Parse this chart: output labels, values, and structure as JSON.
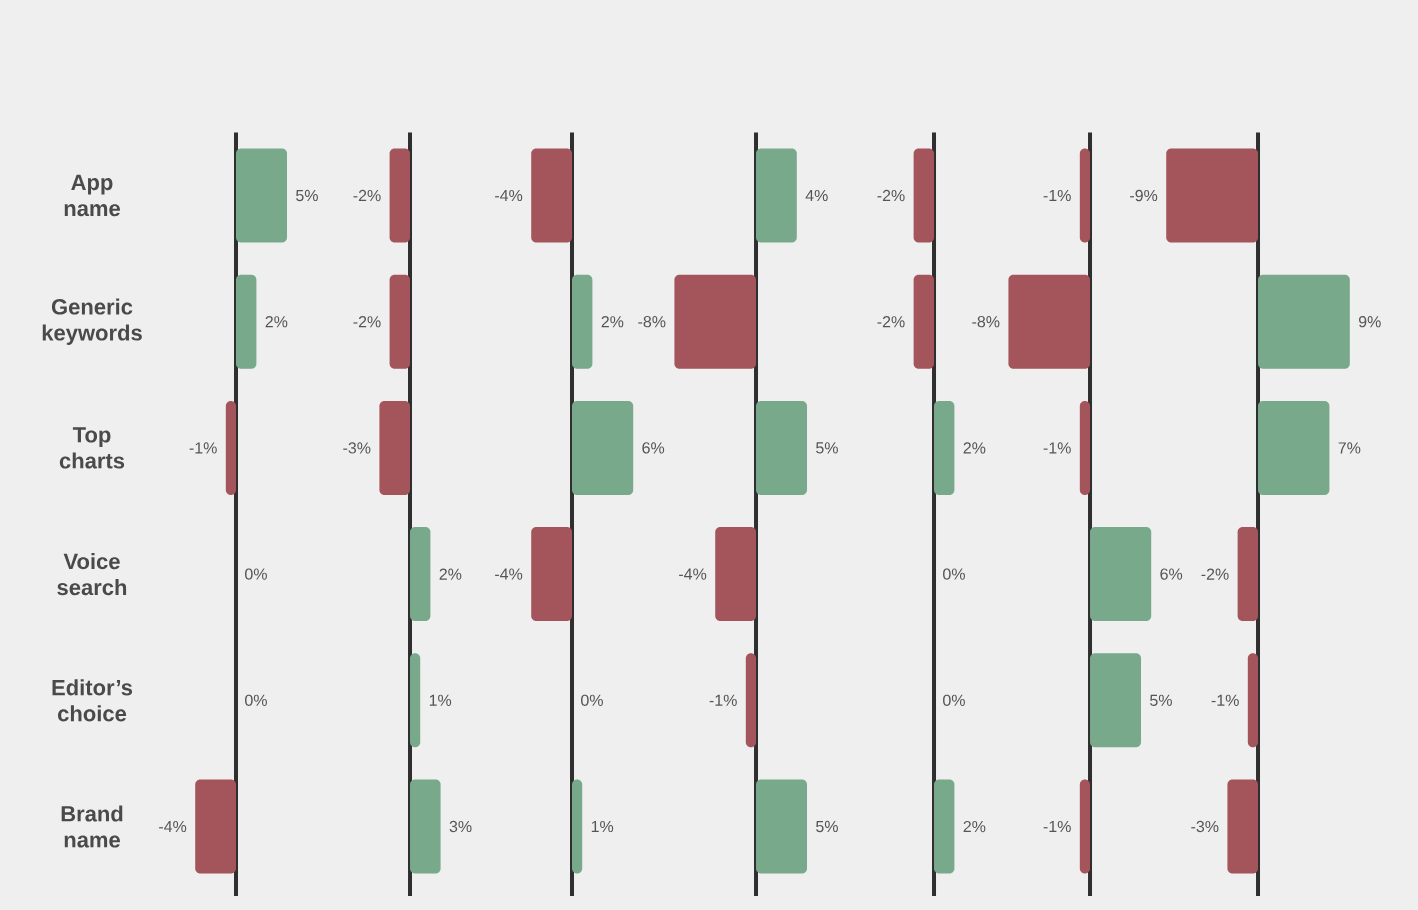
{
  "chart_data": [
    {
      "type": "bar",
      "orientation": "horizontal",
      "tick_labels": "y",
      "categories": [
        "App name",
        "Generic keywords",
        "Top charts",
        "Voice search",
        "Editor’s choice",
        "Brand name"
      ],
      "values": [
        5,
        2,
        -1,
        0,
        0,
        -4
      ],
      "value_labels": [
        "5%",
        "2%",
        "-1%",
        "0%",
        "0%",
        "-4%"
      ],
      "colors": [
        "#78a98a",
        "#78a98a",
        "#a4545b",
        null,
        null,
        "#a4545b"
      ]
    },
    {
      "type": "bar",
      "orientation": "horizontal",
      "categories": [
        null,
        null,
        null,
        null,
        null,
        null
      ],
      "values": [
        -2,
        -2,
        -3,
        2,
        1,
        3
      ],
      "value_labels": [
        "-2%",
        "-2%",
        "-3%",
        "2%",
        "1%",
        "3%"
      ],
      "colors": [
        "#a4545b",
        "#a4545b",
        "#a4545b",
        "#78a98a",
        "#78a98a",
        "#78a98a"
      ]
    },
    {
      "type": "bar",
      "orientation": "horizontal",
      "categories": [
        null,
        null,
        null,
        null,
        null,
        null
      ],
      "values": [
        -4,
        2,
        6,
        -4,
        0,
        1
      ],
      "value_labels": [
        "-4%",
        "2%",
        "6%",
        "-4%",
        "0%",
        "1%"
      ],
      "colors": [
        "#a4545b",
        "#78a98a",
        "#78a98a",
        "#a4545b",
        null,
        "#78a98a"
      ]
    },
    {
      "type": "bar",
      "orientation": "horizontal",
      "categories": [
        null,
        null,
        null,
        null,
        null,
        null
      ],
      "values": [
        4,
        -8,
        5,
        -4,
        -1,
        5
      ],
      "value_labels": [
        "4%",
        "-8%",
        "5%",
        "-4%",
        "-1%",
        "5%"
      ],
      "colors": [
        "#78a98a",
        "#a4545b",
        "#78a98a",
        "#a4545b",
        "#a4545b",
        "#78a98a"
      ]
    },
    {
      "type": "bar",
      "orientation": "horizontal",
      "categories": [
        null,
        null,
        null,
        null,
        null,
        null
      ],
      "values": [
        -2,
        -2,
        2,
        0,
        0,
        2
      ],
      "value_labels": [
        "-2%",
        "-2%",
        "2%",
        "0%",
        "0%",
        "2%"
      ],
      "colors": [
        "#a4545b",
        "#a4545b",
        "#78a98a",
        null,
        null,
        "#78a98a"
      ]
    },
    {
      "type": "bar",
      "orientation": "horizontal",
      "categories": [
        null,
        null,
        null,
        null,
        null,
        null
      ],
      "values": [
        -1,
        -8,
        -1,
        6,
        5,
        -1
      ],
      "value_labels": [
        "-1%",
        "-8%",
        "-1%",
        "6%",
        "5%",
        "-1%"
      ],
      "colors": [
        "#a4545b",
        "#a4545b",
        "#a4545b",
        "#78a98a",
        "#78a98a",
        "#a4545b"
      ]
    },
    {
      "type": "bar",
      "orientation": "horizontal",
      "categories": [
        null,
        null,
        null,
        null,
        null,
        null
      ],
      "values": [
        -9,
        9,
        7,
        -2,
        -1,
        -3
      ],
      "value_labels": [
        "-9%",
        "9%",
        "7%",
        "-2%",
        "-1%",
        "-3%"
      ],
      "colors": [
        "#a4545b",
        "#78a98a",
        "#78a98a",
        "#a4545b",
        "#a4545b",
        "#a4545b"
      ]
    }
  ]
}
